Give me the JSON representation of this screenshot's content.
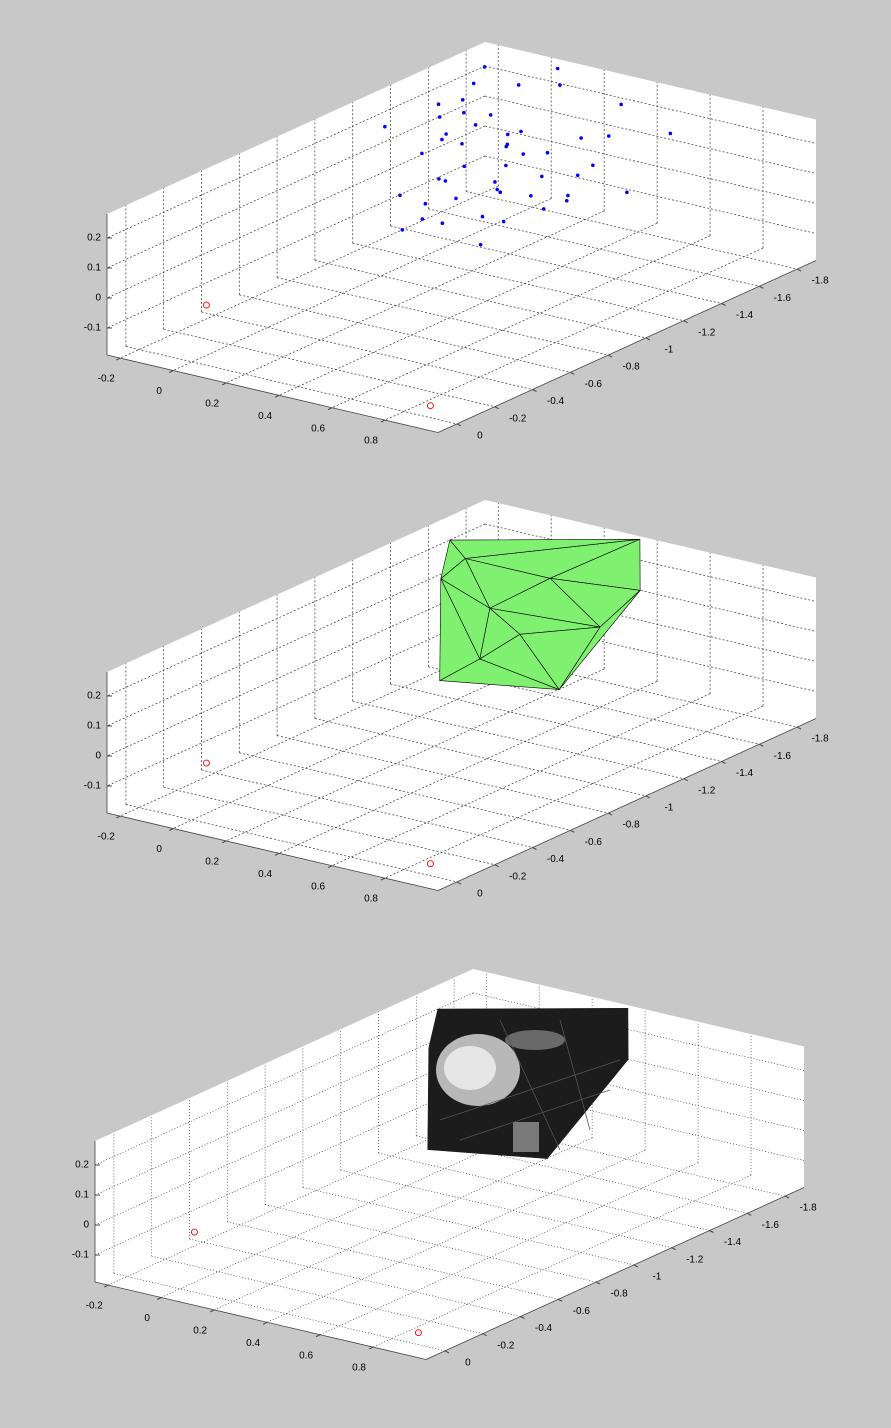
{
  "chart_data": [
    {
      "type": "scatter3d",
      "grid": "dashed",
      "xlim": [
        -0.25,
        1.0
      ],
      "ylim": [
        -1.9,
        0.1
      ],
      "zlim": [
        -0.19,
        0.28
      ],
      "xticks": [
        -0.2,
        0,
        0.2,
        0.4,
        0.6,
        0.8
      ],
      "yticks": [
        -1.8,
        -1.6,
        -1.4,
        -1.2,
        -1,
        -0.8,
        -0.6,
        -0.4,
        -0.2,
        0
      ],
      "zticks": [
        -0.1,
        0,
        0.1,
        0.2
      ],
      "series": [
        {
          "color": "#0000ff",
          "marker": "dot",
          "x": [
            -0.12,
            -0.08,
            -0.15,
            -0.05,
            0.0,
            0.05,
            -0.1,
            0.02,
            0.08,
            0.12,
            -0.02,
            0.15,
            0.2,
            0.1,
            0.04,
            -0.06,
            0.18,
            0.25,
            0.3,
            0.22,
            0.14,
            0.06,
            -0.14,
            -0.18,
            0.28,
            0.35,
            0.4,
            0.32,
            0.12,
            0.0,
            0.08,
            0.16,
            0.24,
            0.2,
            0.1,
            0.3,
            0.45,
            0.5,
            0.38,
            -0.2,
            0.02,
            0.26,
            0.34,
            0.42,
            0.36,
            0.14,
            0.06,
            -0.04,
            0.1,
            0.18
          ],
          "y": [
            -1.6,
            -1.55,
            -1.7,
            -1.65,
            -1.5,
            -1.6,
            -1.45,
            -1.4,
            -1.55,
            -1.5,
            -1.35,
            -1.45,
            -1.6,
            -1.3,
            -1.25,
            -1.3,
            -1.35,
            -1.5,
            -1.7,
            -1.75,
            -1.2,
            -1.15,
            -1.5,
            -1.8,
            -1.4,
            -1.55,
            -1.3,
            -1.2,
            -1.05,
            -1.1,
            -1.0,
            -1.1,
            -1.2,
            -1.35,
            -1.6,
            -1.85,
            -1.9,
            -1.6,
            -1.45,
            -1.3,
            -1.7,
            -1.25,
            -1.05,
            -1.4,
            -1.7,
            -1.75,
            -1.85,
            -1.4,
            -1.2,
            -1.5
          ],
          "z": [
            0.2,
            0.18,
            0.22,
            0.15,
            0.17,
            0.12,
            0.19,
            0.14,
            0.1,
            0.13,
            0.16,
            0.08,
            0.09,
            0.11,
            0.07,
            0.12,
            0.06,
            0.05,
            0.04,
            0.1,
            0.04,
            0.02,
            0.21,
            0.24,
            0.02,
            0.06,
            0.03,
            0.0,
            0.01,
            0.05,
            -0.02,
            -0.01,
            0.0,
            0.03,
            0.14,
            0.2,
            0.12,
            0.02,
            0.01,
            0.18,
            0.25,
            0.08,
            -0.03,
            0.05,
            0.15,
            0.26,
            0.27,
            0.16,
            0.09,
            0.11
          ]
        },
        {
          "color": "#ff0000",
          "marker": "circle",
          "x": [
            0.9,
            -0.21
          ],
          "y": [
            0,
            -0.37
          ],
          "z": [
            -0.15,
            -0.15
          ]
        }
      ]
    },
    {
      "type": "trisurf",
      "grid": "dashed",
      "xlim": [
        -0.25,
        1.0
      ],
      "ylim": [
        -1.9,
        0.1
      ],
      "zlim": [
        -0.19,
        0.28
      ],
      "xticks": [
        -0.2,
        0,
        0.2,
        0.4,
        0.6,
        0.8
      ],
      "yticks": [
        -1.8,
        -1.6,
        -1.4,
        -1.2,
        -1,
        -0.8,
        -0.6,
        -0.4,
        -0.2,
        0
      ],
      "zticks": [
        -0.1,
        0,
        0.1,
        0.2
      ],
      "color": "#80f070",
      "vertices": {
        "x": [
          -0.24,
          0.335,
          0.55,
          0.53,
          0.15,
          -0.06,
          0.125,
          0.21,
          0.47,
          0.23,
          0.31,
          -0.11
        ],
        "y": [
          -1.7,
          -1.9,
          -1.6,
          -1.2,
          -1.1,
          -1.4,
          -1.4,
          -1.6,
          -1.5,
          -1.2,
          -1.3,
          -1.6
        ],
        "z": [
          0.206,
          0.27,
          0.23,
          0.01,
          -0.01,
          0.2,
          0.14,
          0.2,
          0.12,
          0.05,
          0.12,
          0.2
        ]
      },
      "faces": [
        [
          0,
          11,
          5
        ],
        [
          11,
          6,
          5
        ],
        [
          11,
          7,
          6
        ],
        [
          11,
          1,
          7
        ],
        [
          0,
          1,
          11
        ],
        [
          7,
          1,
          2
        ],
        [
          7,
          2,
          8
        ],
        [
          6,
          7,
          8
        ],
        [
          6,
          8,
          10
        ],
        [
          6,
          10,
          9
        ],
        [
          5,
          6,
          9
        ],
        [
          5,
          9,
          4
        ],
        [
          9,
          3,
          4
        ],
        [
          9,
          10,
          3
        ],
        [
          10,
          8,
          3
        ],
        [
          8,
          2,
          3
        ]
      ],
      "series": [
        {
          "color": "#ff0000",
          "marker": "circle",
          "x": [
            0.9,
            -0.21
          ],
          "y": [
            0,
            -0.37
          ],
          "z": [
            -0.15,
            -0.15
          ]
        }
      ]
    },
    {
      "type": "surface",
      "grid": "dotted",
      "xlim": [
        -0.25,
        1.0
      ],
      "ylim": [
        -1.9,
        0.1
      ],
      "zlim": [
        -0.19,
        0.28
      ],
      "xticks": [
        -0.2,
        0,
        0.2,
        0.4,
        0.6,
        0.8
      ],
      "yticks": [
        -1.8,
        -1.6,
        -1.4,
        -1.2,
        -1,
        -0.8,
        -0.6,
        -0.4,
        -0.2,
        0
      ],
      "zticks": [
        -0.1,
        0,
        0.1,
        0.2
      ],
      "color": "#1c1c1c",
      "vertices": {
        "x": [
          -0.24,
          0.335,
          0.55,
          0.53,
          0.15,
          -0.06,
          0.125,
          0.21,
          0.47,
          0.23,
          0.31,
          -0.11
        ],
        "y": [
          -1.7,
          -1.9,
          -1.6,
          -1.2,
          -1.1,
          -1.4,
          -1.4,
          -1.6,
          -1.5,
          -1.2,
          -1.3,
          -1.6
        ],
        "z": [
          0.206,
          0.27,
          0.23,
          0.01,
          -0.01,
          0.2,
          0.14,
          0.2,
          0.12,
          0.05,
          0.12,
          0.2
        ]
      },
      "faces": [
        [
          0,
          11,
          5
        ],
        [
          11,
          6,
          5
        ],
        [
          11,
          7,
          6
        ],
        [
          11,
          1,
          7
        ],
        [
          0,
          1,
          11
        ],
        [
          7,
          1,
          2
        ],
        [
          7,
          2,
          8
        ],
        [
          6,
          7,
          8
        ],
        [
          6,
          8,
          10
        ],
        [
          6,
          10,
          9
        ],
        [
          5,
          6,
          9
        ],
        [
          5,
          9,
          4
        ],
        [
          9,
          3,
          4
        ],
        [
          9,
          10,
          3
        ],
        [
          10,
          8,
          3
        ],
        [
          8,
          2,
          3
        ]
      ],
      "series": [
        {
          "color": "#ff0000",
          "marker": "circle",
          "x": [
            0.9,
            -0.21
          ],
          "y": [
            0,
            -0.37
          ],
          "z": [
            -0.15,
            -0.15
          ]
        }
      ]
    }
  ]
}
